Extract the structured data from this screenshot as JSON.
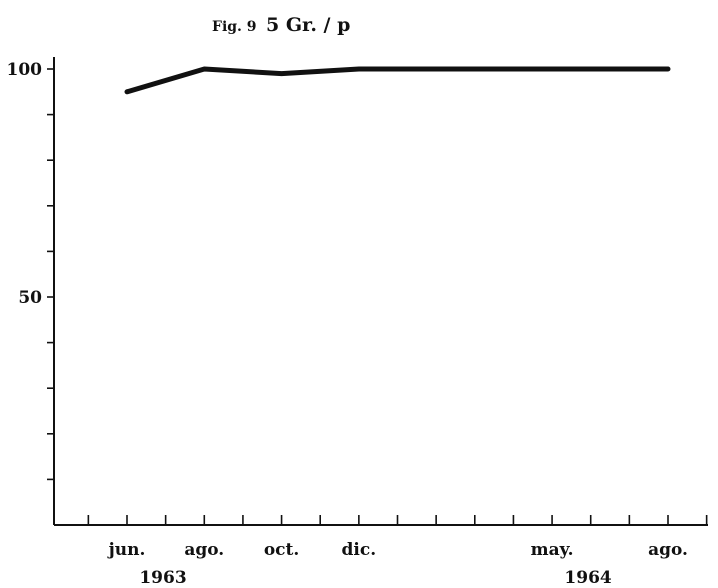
{
  "chart_data": {
    "type": "line",
    "title_prefix": "Fig. 9",
    "title": "5 Gr. / p",
    "xlabel": "",
    "ylabel": "",
    "ylim": [
      0,
      100
    ],
    "y_ticks": [
      0,
      10,
      20,
      30,
      40,
      50,
      60,
      70,
      80,
      90,
      100
    ],
    "y_tick_labels": [
      {
        "value": 100,
        "label": "100"
      },
      {
        "value": 50,
        "label": "50"
      }
    ],
    "x_months_range": [
      1963.25,
      1964.75
    ],
    "x_tick_months": [
      {
        "year": 1963,
        "month": 5
      },
      {
        "year": 1963,
        "month": 6
      },
      {
        "year": 1963,
        "month": 7
      },
      {
        "year": 1963,
        "month": 8
      },
      {
        "year": 1963,
        "month": 9
      },
      {
        "year": 1963,
        "month": 10
      },
      {
        "year": 1963,
        "month": 11
      },
      {
        "year": 1963,
        "month": 12
      },
      {
        "year": 1964,
        "month": 1
      },
      {
        "year": 1964,
        "month": 2
      },
      {
        "year": 1964,
        "month": 3
      },
      {
        "year": 1964,
        "month": 4
      },
      {
        "year": 1964,
        "month": 5
      },
      {
        "year": 1964,
        "month": 6
      },
      {
        "year": 1964,
        "month": 7
      },
      {
        "year": 1964,
        "month": 8
      },
      {
        "year": 1964,
        "month": 9
      }
    ],
    "x_tick_labels": [
      {
        "year": 1963,
        "month": 6,
        "label": "jun."
      },
      {
        "year": 1963,
        "month": 8,
        "label": "ago."
      },
      {
        "year": 1963,
        "month": 10,
        "label": "oct."
      },
      {
        "year": 1963,
        "month": 12,
        "label": "dic."
      },
      {
        "year": 1964,
        "month": 5,
        "label": "may."
      },
      {
        "year": 1964,
        "month": 8,
        "label": "ago."
      }
    ],
    "year_labels": [
      {
        "year": 1963,
        "month": 6,
        "label": "1963"
      },
      {
        "year": 1964,
        "month": 5,
        "label": "1964"
      }
    ],
    "series": [
      {
        "points": [
          {
            "year": 1963,
            "month": 6,
            "y": 95
          },
          {
            "year": 1963,
            "month": 8,
            "y": 100
          },
          {
            "year": 1963,
            "month": 10,
            "y": 99
          },
          {
            "year": 1963,
            "month": 12,
            "y": 100
          },
          {
            "year": 1964,
            "month": 8,
            "y": 100
          }
        ]
      }
    ],
    "grid": false,
    "legend": "none"
  }
}
